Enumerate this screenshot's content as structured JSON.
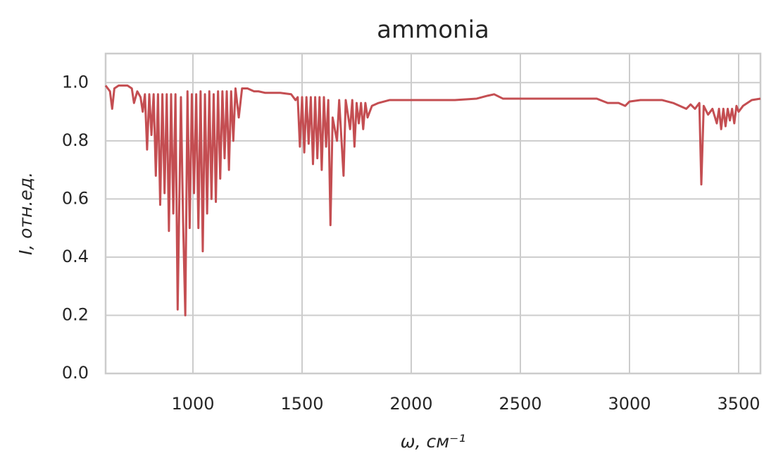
{
  "chart_data": {
    "type": "line",
    "title": "ammonia",
    "x_label": "ω, см⁻¹",
    "y_label": "I, отн.ед.",
    "color": "#c44e52",
    "grid": true,
    "xlim": [
      600,
      3600
    ],
    "xticks": [
      1000,
      1500,
      2000,
      2500,
      3000,
      3500
    ],
    "ylim": [
      0,
      1.1
    ],
    "yticks": [
      {
        "value": 0,
        "label": "0.0"
      },
      0.2,
      0.4,
      0.6,
      0.8,
      {
        "value": 1,
        "label": "1.0"
      }
    ],
    "x": [
      600,
      620,
      630,
      640,
      660,
      700,
      720,
      730,
      745,
      760,
      770,
      780,
      790,
      800,
      810,
      820,
      830,
      840,
      850,
      860,
      870,
      880,
      890,
      900,
      910,
      920,
      930,
      945,
      955,
      965,
      975,
      985,
      995,
      1005,
      1015,
      1025,
      1035,
      1045,
      1055,
      1065,
      1075,
      1085,
      1095,
      1105,
      1115,
      1125,
      1135,
      1145,
      1155,
      1165,
      1175,
      1185,
      1195,
      1210,
      1225,
      1250,
      1280,
      1300,
      1330,
      1400,
      1450,
      1470,
      1480,
      1490,
      1500,
      1510,
      1520,
      1530,
      1540,
      1550,
      1560,
      1570,
      1580,
      1590,
      1600,
      1610,
      1620,
      1630,
      1640,
      1660,
      1670,
      1690,
      1700,
      1720,
      1730,
      1740,
      1750,
      1760,
      1770,
      1780,
      1790,
      1800,
      1820,
      1850,
      1900,
      2000,
      2100,
      2200,
      2300,
      2350,
      2380,
      2420,
      2500,
      2700,
      2850,
      2900,
      2950,
      2980,
      3000,
      3050,
      3150,
      3200,
      3230,
      3260,
      3280,
      3300,
      3320,
      3329,
      3340,
      3360,
      3380,
      3400,
      3410,
      3420,
      3430,
      3440,
      3450,
      3460,
      3470,
      3480,
      3490,
      3500,
      3520,
      3560,
      3600
    ],
    "values": [
      0.99,
      0.97,
      0.91,
      0.98,
      0.99,
      0.99,
      0.98,
      0.93,
      0.97,
      0.95,
      0.9,
      0.96,
      0.77,
      0.96,
      0.82,
      0.96,
      0.68,
      0.96,
      0.58,
      0.96,
      0.62,
      0.96,
      0.49,
      0.96,
      0.55,
      0.96,
      0.22,
      0.95,
      0.52,
      0.2,
      0.97,
      0.5,
      0.96,
      0.62,
      0.96,
      0.5,
      0.97,
      0.42,
      0.96,
      0.55,
      0.97,
      0.6,
      0.96,
      0.59,
      0.97,
      0.67,
      0.97,
      0.74,
      0.97,
      0.7,
      0.97,
      0.8,
      0.98,
      0.88,
      0.98,
      0.98,
      0.97,
      0.97,
      0.965,
      0.965,
      0.96,
      0.94,
      0.95,
      0.78,
      0.95,
      0.76,
      0.95,
      0.79,
      0.95,
      0.72,
      0.95,
      0.74,
      0.95,
      0.7,
      0.95,
      0.78,
      0.94,
      0.51,
      0.88,
      0.8,
      0.94,
      0.68,
      0.94,
      0.84,
      0.94,
      0.78,
      0.93,
      0.86,
      0.93,
      0.84,
      0.93,
      0.88,
      0.92,
      0.93,
      0.94,
      0.94,
      0.94,
      0.94,
      0.945,
      0.955,
      0.96,
      0.945,
      0.945,
      0.945,
      0.945,
      0.93,
      0.93,
      0.92,
      0.935,
      0.94,
      0.94,
      0.93,
      0.92,
      0.91,
      0.925,
      0.91,
      0.93,
      0.65,
      0.92,
      0.89,
      0.91,
      0.86,
      0.91,
      0.84,
      0.91,
      0.85,
      0.91,
      0.87,
      0.91,
      0.86,
      0.92,
      0.9,
      0.92,
      0.94,
      0.945
    ]
  }
}
